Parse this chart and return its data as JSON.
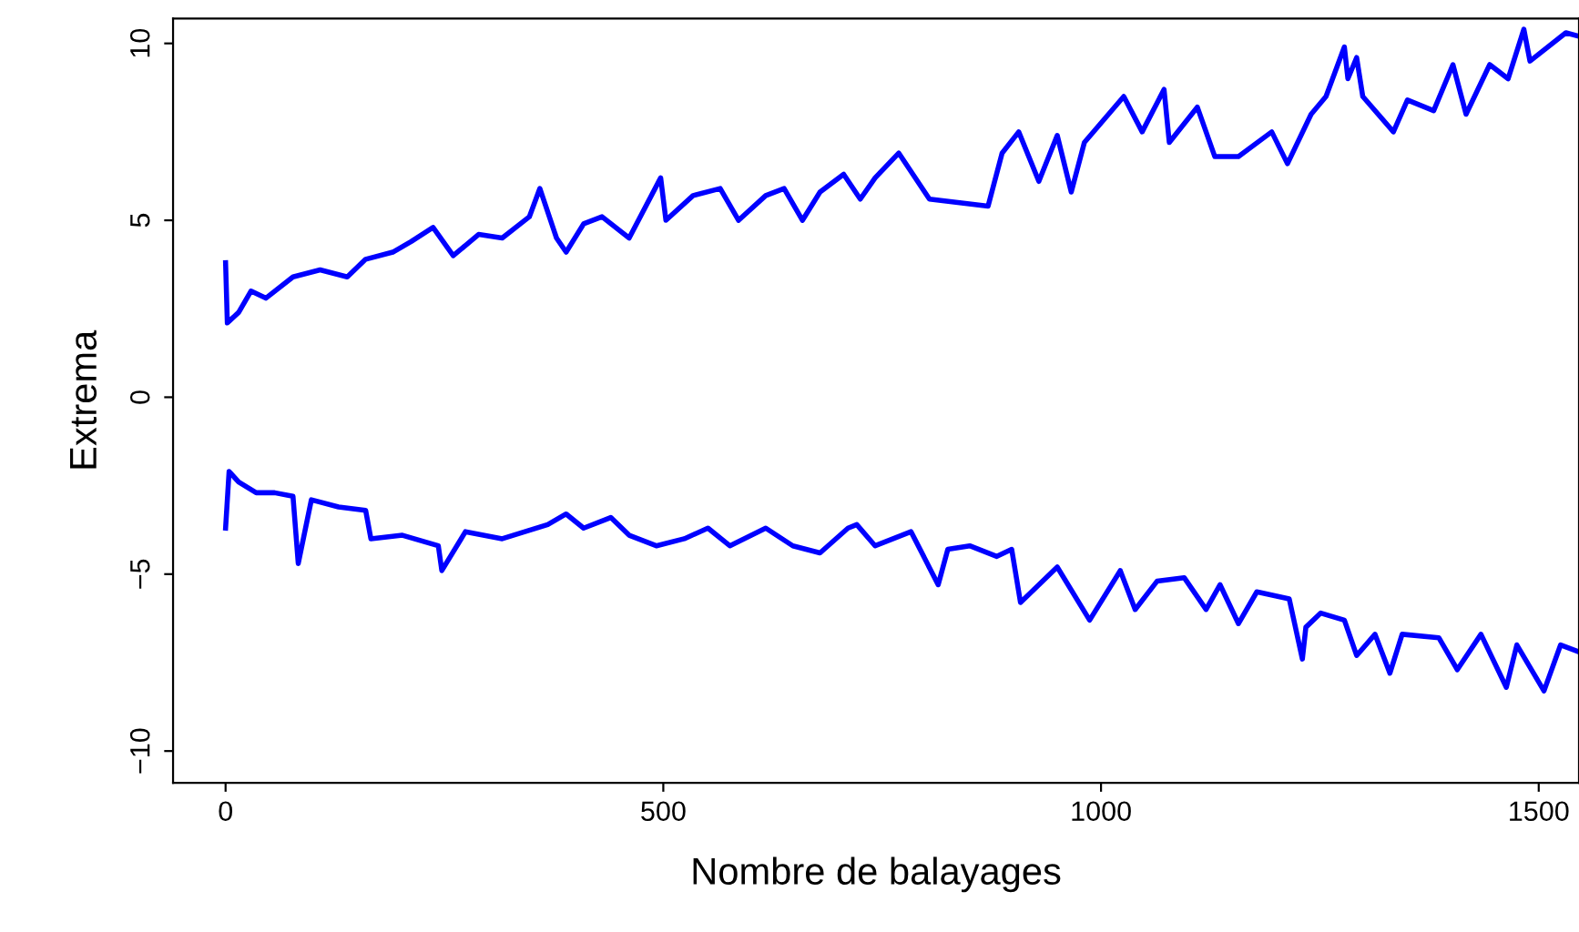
{
  "chart_data": {
    "type": "line",
    "xlabel": "Nombre de balayages",
    "ylabel": "Extrema",
    "xlim": [
      -60,
      1546
    ],
    "ylim": [
      -10.9,
      10.7
    ],
    "xticks": [
      0,
      500,
      1000,
      1500
    ],
    "yticks": [
      {
        "value": -10,
        "label": "−10"
      },
      {
        "value": -5,
        "label": "−5"
      },
      0,
      5,
      10
    ],
    "grid": false,
    "marker": "none",
    "line_style": "solid",
    "series": [
      {
        "color": "#0000ff",
        "x": [
          0,
          2,
          15,
          29,
          46,
          77,
          108,
          139,
          160,
          191,
          212,
          237,
          260,
          289,
          316,
          347,
          359,
          378,
          389,
          409,
          430,
          461,
          497,
          503,
          534,
          565,
          586,
          617,
          638,
          659,
          679,
          706,
          725,
          742,
          769,
          804,
          871,
          887,
          906,
          929,
          950,
          966,
          981,
          1026,
          1047,
          1072,
          1078,
          1110,
          1130,
          1157,
          1195,
          1213,
          1240,
          1257,
          1278,
          1282,
          1292,
          1299,
          1334,
          1350,
          1380,
          1402,
          1417,
          1444,
          1465,
          1483,
          1490,
          1531,
          1546
        ],
        "values": [
          3.8,
          2.1,
          2.4,
          3.0,
          2.8,
          3.4,
          3.6,
          3.4,
          3.9,
          4.1,
          4.4,
          4.8,
          4.0,
          4.6,
          4.5,
          5.1,
          5.9,
          4.5,
          4.1,
          4.9,
          5.1,
          4.5,
          6.2,
          5.0,
          5.7,
          5.9,
          5.0,
          5.7,
          5.9,
          5.0,
          5.8,
          6.3,
          5.6,
          6.2,
          6.9,
          5.6,
          5.4,
          6.9,
          7.5,
          6.1,
          7.4,
          5.8,
          7.2,
          8.5,
          7.5,
          8.7,
          7.2,
          8.2,
          6.8,
          6.8,
          7.5,
          6.6,
          8.0,
          8.5,
          9.9,
          9.0,
          9.6,
          8.5,
          7.5,
          8.4,
          8.1,
          9.4,
          8.0,
          9.4,
          9.0,
          10.4,
          9.5,
          10.3,
          10.2
        ]
      },
      {
        "color": "#0000ff",
        "x": [
          0,
          4,
          15,
          35,
          56,
          77,
          83,
          98,
          129,
          160,
          166,
          202,
          243,
          247,
          274,
          316,
          368,
          389,
          409,
          440,
          461,
          492,
          524,
          551,
          576,
          617,
          648,
          679,
          711,
          721,
          742,
          783,
          814,
          825,
          850,
          881,
          898,
          908,
          950,
          987,
          1022,
          1039,
          1064,
          1095,
          1120,
          1136,
          1157,
          1178,
          1215,
          1230,
          1234,
          1251,
          1278,
          1292,
          1313,
          1330,
          1344,
          1386,
          1407,
          1434,
          1463,
          1475,
          1506,
          1525,
          1546
        ],
        "values": [
          -3.7,
          -2.1,
          -2.4,
          -2.7,
          -2.7,
          -2.8,
          -4.7,
          -2.9,
          -3.1,
          -3.2,
          -4.0,
          -3.9,
          -4.2,
          -4.9,
          -3.8,
          -4.0,
          -3.6,
          -3.3,
          -3.7,
          -3.4,
          -3.9,
          -4.2,
          -4.0,
          -3.7,
          -4.2,
          -3.7,
          -4.2,
          -4.4,
          -3.7,
          -3.6,
          -4.2,
          -3.8,
          -5.3,
          -4.3,
          -4.2,
          -4.5,
          -4.3,
          -5.8,
          -4.8,
          -6.3,
          -4.9,
          -6.0,
          -5.2,
          -5.1,
          -6.0,
          -5.3,
          -6.4,
          -5.5,
          -5.7,
          -7.4,
          -6.5,
          -6.1,
          -6.3,
          -7.3,
          -6.7,
          -7.8,
          -6.7,
          -6.8,
          -7.7,
          -6.7,
          -8.2,
          -7.0,
          -8.3,
          -7.0,
          -7.2
        ]
      }
    ]
  }
}
